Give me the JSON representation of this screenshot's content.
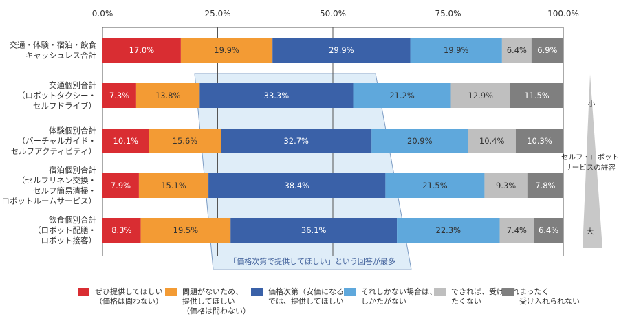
{
  "chart_data": {
    "type": "bar",
    "orientation": "horizontal",
    "stacked": true,
    "xlim": [
      0,
      100
    ],
    "x_ticks": [
      "0.0%",
      "25.0%",
      "50.0%",
      "75.0%",
      "100.0%"
    ],
    "categories": [
      [
        "交通・体験・宿泊・飲食",
        "キャッシュレス合計"
      ],
      [
        "交通個別合計",
        "（ロボットタクシー・",
        "セルフドライブ）"
      ],
      [
        "体験個別合計",
        "（バーチャルガイド・",
        "セルフアクティビティ）"
      ],
      [
        "宿泊個別合計",
        "（セルフリネン交換・",
        "セルフ簡易清掃・",
        "ロボットルームサービス）"
      ],
      [
        "飲食個別合計",
        "（ロボット配膳・",
        "ロボット接客）"
      ]
    ],
    "series": [
      {
        "name": "ぜひ提供してほしい\n（価格は問わない）",
        "color": "#d92d32",
        "text_color": "#ffffff",
        "values": [
          17.0,
          7.3,
          10.1,
          7.9,
          8.3
        ],
        "labels": [
          "17.0%",
          "7.3%",
          "10.1%",
          "7.9%",
          "8.3%"
        ]
      },
      {
        "name": "問題がないため、\n提供してほしい\n（価格は問わない）",
        "color": "#f39b34",
        "text_color": "#333333",
        "values": [
          19.9,
          13.8,
          15.6,
          15.1,
          19.5
        ],
        "labels": [
          "19.9%",
          "13.8%",
          "15.6%",
          "15.1%",
          "19.5%"
        ]
      },
      {
        "name": "価格次第（安価になる）\nでは、提供してほしい",
        "color": "#3a61a8",
        "text_color": "#ffffff",
        "values": [
          29.9,
          33.3,
          32.7,
          38.4,
          36.1
        ],
        "labels": [
          "29.9%",
          "33.3%",
          "32.7%",
          "38.4%",
          "36.1%"
        ]
      },
      {
        "name": "それしかない場合は、\nしかたがない",
        "color": "#5fa8dc",
        "text_color": "#333333",
        "values": [
          19.9,
          21.2,
          20.9,
          21.5,
          22.3
        ],
        "labels": [
          "19.9%",
          "21.2%",
          "20.9%",
          "21.5%",
          "22.3%"
        ]
      },
      {
        "name": "できれば、受け入れ\nたくない",
        "color": "#bfbfbf",
        "text_color": "#333333",
        "values": [
          6.4,
          12.9,
          10.4,
          9.3,
          7.4
        ],
        "labels": [
          "6.4%",
          "12.9%",
          "10.4%",
          "9.3%",
          "7.4%"
        ]
      },
      {
        "name": "まったく\n受け入れられない",
        "color": "#7f7f7f",
        "text_color": "#ffffff",
        "values": [
          6.9,
          11.5,
          10.3,
          7.8,
          6.4
        ],
        "labels": [
          "6.9%",
          "11.5%",
          "10.3%",
          "7.8%",
          "6.4%"
        ]
      }
    ],
    "annotation": "「価格次第で提供してほしい」という回答が最多",
    "annotation_color": "#dfedf8",
    "side_scale": {
      "top": "小",
      "middle": [
        "セルフ・ロボット",
        "サービスの許容"
      ],
      "bottom": "大",
      "color": "#c8c8c8"
    },
    "legend_position": "bottom",
    "grid": true
  }
}
